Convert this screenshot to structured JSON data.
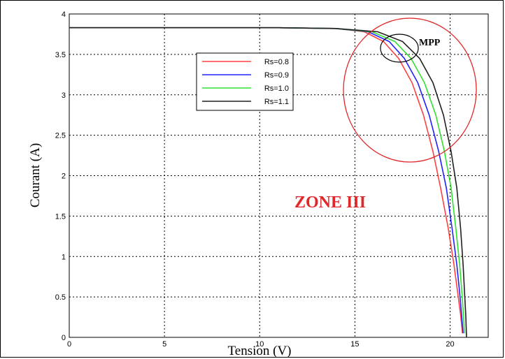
{
  "chart_data": {
    "type": "line",
    "title": "",
    "xlabel": "Tension (V)",
    "ylabel": "Courant (A)",
    "xlim": [
      0,
      22
    ],
    "ylim": [
      0,
      4
    ],
    "xticks": [
      0,
      5,
      10,
      15,
      20
    ],
    "yticks": [
      0,
      0.5,
      1,
      1.5,
      2,
      2.5,
      3,
      3.5,
      4
    ],
    "xtick_labels": [
      "0",
      "5",
      "10",
      "15",
      "20"
    ],
    "ytick_labels": [
      "0",
      "0.5",
      "1",
      "1.5",
      "2",
      "2.5",
      "3",
      "3.5",
      "4"
    ],
    "grid": true,
    "legend_position": "top-center",
    "series": [
      {
        "name": "Rs=0.8",
        "color": "#ff4040",
        "x": [
          0,
          11.0,
          14.0,
          15.5,
          16.5,
          17.3,
          18.0,
          18.6,
          19.1,
          19.5,
          19.9,
          20.2,
          20.4,
          20.55,
          20.65
        ],
        "y": [
          3.83,
          3.83,
          3.82,
          3.78,
          3.66,
          3.45,
          3.15,
          2.75,
          2.3,
          1.85,
          1.35,
          0.9,
          0.55,
          0.28,
          0.05
        ]
      },
      {
        "name": "Rs=0.9",
        "color": "#2020ff",
        "x": [
          0,
          11.0,
          14.0,
          15.7,
          16.8,
          17.6,
          18.3,
          18.9,
          19.4,
          19.8,
          20.1,
          20.35,
          20.5,
          20.6,
          20.68
        ],
        "y": [
          3.83,
          3.83,
          3.82,
          3.78,
          3.66,
          3.45,
          3.15,
          2.75,
          2.3,
          1.85,
          1.35,
          0.9,
          0.55,
          0.28,
          0.05
        ]
      },
      {
        "name": "Rs=1.0",
        "color": "#30e030",
        "x": [
          0,
          11.0,
          14.0,
          15.9,
          17.1,
          17.95,
          18.65,
          19.25,
          19.7,
          20.05,
          20.3,
          20.5,
          20.62,
          20.7,
          20.75
        ],
        "y": [
          3.83,
          3.83,
          3.82,
          3.78,
          3.66,
          3.45,
          3.15,
          2.75,
          2.3,
          1.85,
          1.35,
          0.9,
          0.55,
          0.28,
          0.05
        ]
      },
      {
        "name": "Rs=1.1",
        "color": "#202020",
        "x": [
          0,
          11.0,
          14.0,
          16.2,
          17.5,
          18.4,
          19.1,
          19.65,
          20.05,
          20.35,
          20.55,
          20.68,
          20.76,
          20.82,
          20.86
        ],
        "y": [
          3.83,
          3.83,
          3.82,
          3.78,
          3.66,
          3.45,
          3.15,
          2.75,
          2.3,
          1.85,
          1.35,
          0.9,
          0.55,
          0.28,
          0.0
        ]
      }
    ],
    "annotations": [
      {
        "text": "ZONE III",
        "color": "#e0282a"
      },
      {
        "text": "MPP",
        "color": "#000000"
      }
    ]
  }
}
